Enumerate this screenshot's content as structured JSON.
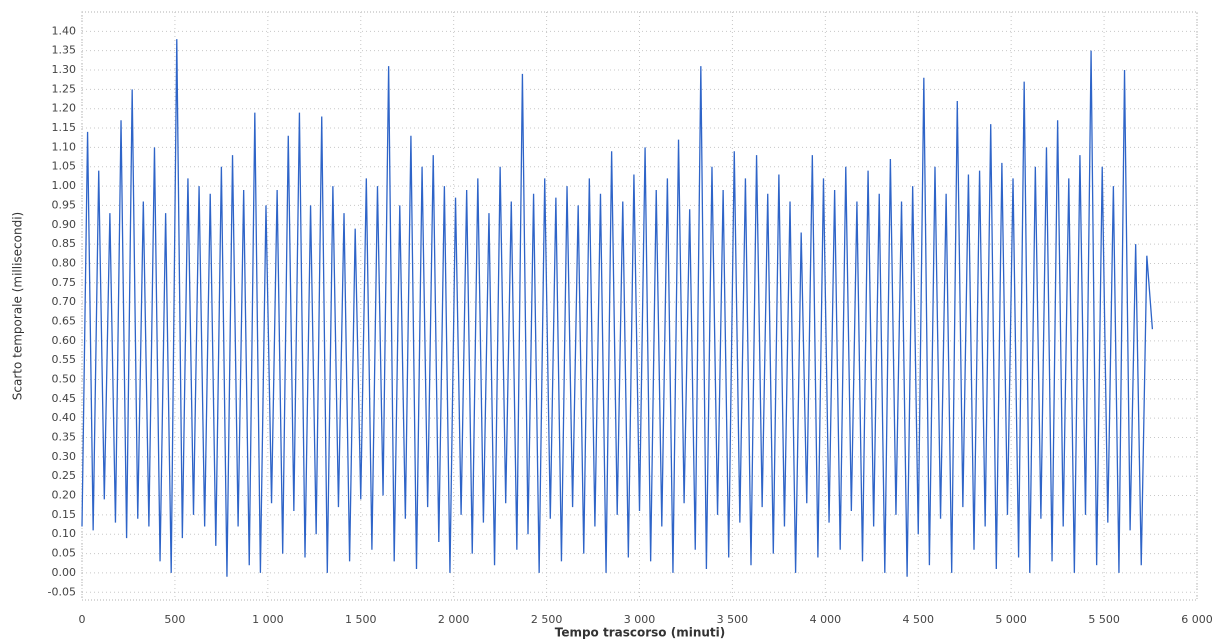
{
  "chart_data": {
    "type": "line",
    "xlabel": "Tempo trascorso (minuti)",
    "ylabel": "Scarto temporale (millisecondi)",
    "xlim": [
      0,
      6000
    ],
    "ylim": [
      -0.07,
      1.45
    ],
    "xticks": [
      0,
      500,
      {
        "value": 1000,
        "label": "1 000"
      },
      {
        "value": 1500,
        "label": "1 500"
      },
      {
        "value": 2000,
        "label": "2 000"
      },
      {
        "value": 2500,
        "label": "2 500"
      },
      {
        "value": 3000,
        "label": "3 000"
      },
      {
        "value": 3500,
        "label": "3 500"
      },
      {
        "value": 4000,
        "label": "4 000"
      },
      {
        "value": 4500,
        "label": "4 500"
      },
      {
        "value": 5000,
        "label": "5 000"
      },
      {
        "value": 5500,
        "label": "5 500"
      },
      {
        "value": 6000,
        "label": "6 000"
      }
    ],
    "yticks": [
      {
        "value": -0.05,
        "label": "-0.05"
      },
      {
        "value": 0,
        "label": "0.00"
      },
      {
        "value": 0.05,
        "label": "0.05"
      },
      {
        "value": 0.1,
        "label": "0.10"
      },
      {
        "value": 0.15,
        "label": "0.15"
      },
      {
        "value": 0.2,
        "label": "0.20"
      },
      {
        "value": 0.25,
        "label": "0.25"
      },
      {
        "value": 0.3,
        "label": "0.30"
      },
      {
        "value": 0.35,
        "label": "0.35"
      },
      {
        "value": 0.4,
        "label": "0.40"
      },
      {
        "value": 0.45,
        "label": "0.45"
      },
      {
        "value": 0.5,
        "label": "0.50"
      },
      {
        "value": 0.55,
        "label": "0.55"
      },
      {
        "value": 0.6,
        "label": "0.60"
      },
      {
        "value": 0.65,
        "label": "0.65"
      },
      {
        "value": 0.7,
        "label": "0.70"
      },
      {
        "value": 0.75,
        "label": "0.75"
      },
      {
        "value": 0.8,
        "label": "0.80"
      },
      {
        "value": 0.85,
        "label": "0.85"
      },
      {
        "value": 0.9,
        "label": "0.90"
      },
      {
        "value": 0.95,
        "label": "0.95"
      },
      {
        "value": 1,
        "label": "1.00"
      },
      {
        "value": 1.05,
        "label": "1.05"
      },
      {
        "value": 1.1,
        "label": "1.10"
      },
      {
        "value": 1.15,
        "label": "1.15"
      },
      {
        "value": 1.2,
        "label": "1.20"
      },
      {
        "value": 1.25,
        "label": "1.25"
      },
      {
        "value": 1.3,
        "label": "1.30"
      },
      {
        "value": 1.35,
        "label": "1.35"
      },
      {
        "value": 1.4,
        "label": "1.40"
      }
    ],
    "grid": true,
    "x": [
      0,
      30,
      60,
      90,
      120,
      150,
      180,
      210,
      240,
      270,
      300,
      330,
      360,
      390,
      420,
      450,
      480,
      510,
      540,
      570,
      600,
      630,
      660,
      690,
      720,
      750,
      780,
      810,
      840,
      870,
      900,
      930,
      960,
      990,
      1020,
      1050,
      1080,
      1110,
      1140,
      1170,
      1200,
      1230,
      1260,
      1290,
      1320,
      1350,
      1380,
      1410,
      1440,
      1470,
      1500,
      1530,
      1560,
      1590,
      1620,
      1650,
      1680,
      1710,
      1740,
      1770,
      1800,
      1830,
      1860,
      1890,
      1920,
      1950,
      1980,
      2010,
      2040,
      2070,
      2100,
      2130,
      2160,
      2190,
      2220,
      2250,
      2280,
      2310,
      2340,
      2370,
      2400,
      2430,
      2460,
      2490,
      2520,
      2550,
      2580,
      2610,
      2640,
      2670,
      2700,
      2730,
      2760,
      2790,
      2820,
      2850,
      2880,
      2910,
      2940,
      2970,
      3000,
      3030,
      3060,
      3090,
      3120,
      3150,
      3180,
      3210,
      3240,
      3270,
      3300,
      3330,
      3360,
      3390,
      3420,
      3450,
      3480,
      3510,
      3540,
      3570,
      3600,
      3630,
      3660,
      3690,
      3720,
      3750,
      3780,
      3810,
      3840,
      3870,
      3900,
      3930,
      3960,
      3990,
      4020,
      4050,
      4080,
      4110,
      4140,
      4170,
      4200,
      4230,
      4260,
      4290,
      4320,
      4350,
      4380,
      4410,
      4440,
      4470,
      4500,
      4530,
      4560,
      4590,
      4620,
      4650,
      4680,
      4710,
      4740,
      4770,
      4800,
      4830,
      4860,
      4890,
      4920,
      4950,
      4980,
      5010,
      5040,
      5070,
      5100,
      5130,
      5160,
      5190,
      5220,
      5250,
      5280,
      5310,
      5340,
      5370,
      5400,
      5430,
      5460,
      5490,
      5520,
      5550,
      5580,
      5610,
      5640,
      5670,
      5700,
      5730,
      5760
    ],
    "series": [
      {
        "color": "#2e64c8",
        "values": [
          0.12,
          1.14,
          0.11,
          1.04,
          0.19,
          0.93,
          0.13,
          1.17,
          0.09,
          1.25,
          0.14,
          0.96,
          0.12,
          1.1,
          0.03,
          0.93,
          0.0,
          1.38,
          0.09,
          1.02,
          0.15,
          1.0,
          0.12,
          0.98,
          0.07,
          1.05,
          -0.01,
          1.08,
          0.12,
          0.99,
          0.02,
          1.19,
          0.0,
          0.95,
          0.18,
          0.99,
          0.05,
          1.13,
          0.16,
          1.19,
          0.04,
          0.95,
          0.1,
          1.18,
          0.0,
          1.0,
          0.17,
          0.93,
          0.03,
          0.89,
          0.19,
          1.02,
          0.06,
          1.0,
          0.2,
          1.31,
          0.03,
          0.95,
          0.14,
          1.13,
          0.01,
          1.05,
          0.17,
          1.08,
          0.08,
          1.0,
          0.0,
          0.97,
          0.15,
          0.99,
          0.05,
          1.02,
          0.13,
          0.93,
          0.02,
          1.05,
          0.18,
          0.96,
          0.06,
          1.29,
          0.1,
          0.98,
          0.0,
          1.02,
          0.14,
          0.97,
          0.03,
          1.0,
          0.17,
          0.95,
          0.05,
          1.02,
          0.12,
          0.98,
          0.0,
          1.09,
          0.15,
          0.96,
          0.04,
          1.03,
          0.16,
          1.1,
          0.03,
          0.99,
          0.12,
          1.02,
          0.0,
          1.12,
          0.18,
          0.94,
          0.06,
          1.31,
          0.01,
          1.05,
          0.15,
          0.99,
          0.04,
          1.09,
          0.13,
          1.02,
          0.02,
          1.08,
          0.17,
          0.98,
          0.05,
          1.03,
          0.12,
          0.96,
          0.0,
          0.88,
          0.18,
          1.08,
          0.04,
          1.02,
          0.13,
          0.99,
          0.06,
          1.05,
          0.16,
          0.96,
          0.03,
          1.04,
          0.12,
          0.98,
          0.0,
          1.07,
          0.15,
          0.96,
          -0.01,
          1.0,
          0.1,
          1.28,
          0.02,
          1.05,
          0.14,
          0.98,
          0.0,
          1.22,
          0.17,
          1.03,
          0.06,
          1.04,
          0.12,
          1.16,
          0.01,
          1.06,
          0.15,
          1.02,
          0.04,
          1.27,
          0.0,
          1.05,
          0.14,
          1.1,
          0.03,
          1.17,
          0.12,
          1.02,
          0.0,
          1.08,
          0.15,
          1.35,
          0.02,
          1.05,
          0.13,
          1.0,
          0.0,
          1.3,
          0.11,
          0.85,
          0.02,
          0.82,
          0.63
        ]
      }
    ]
  }
}
